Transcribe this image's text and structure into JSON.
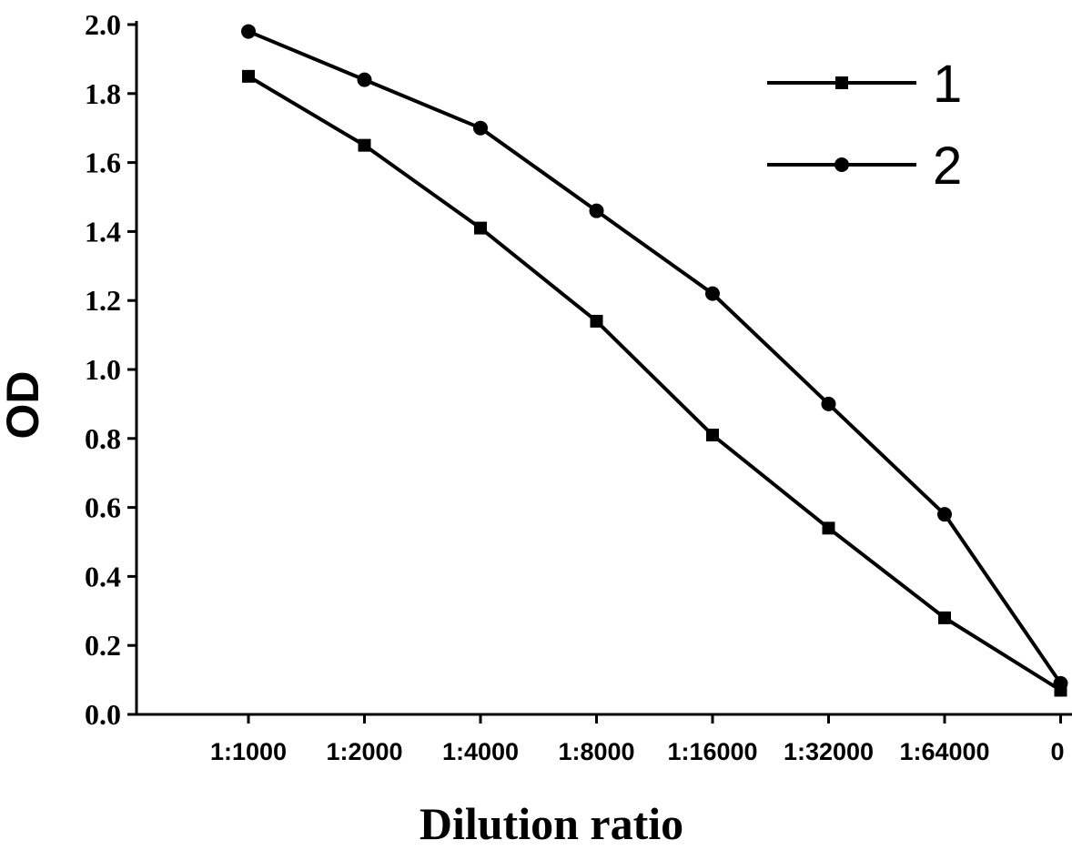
{
  "chart_data": {
    "type": "line",
    "title": "",
    "xlabel": "Dilution ratio",
    "ylabel": "OD",
    "categories": [
      "1:1000",
      "1:2000",
      "1:4000",
      "1:8000",
      "1:16000",
      "1:32000",
      "1:64000",
      "0"
    ],
    "ylim": [
      0,
      2.0
    ],
    "yticks": [
      "0.0",
      "0.2",
      "0.4",
      "0.6",
      "0.8",
      "1.0",
      "1.2",
      "1.4",
      "1.6",
      "1.8",
      "2.0"
    ],
    "grid": false,
    "legend_position": "top-right",
    "series": [
      {
        "name": "1",
        "marker": "square",
        "values": [
          1.85,
          1.65,
          1.41,
          1.14,
          0.81,
          0.54,
          0.28,
          0.07
        ]
      },
      {
        "name": "2",
        "marker": "circle",
        "values": [
          1.98,
          1.84,
          1.7,
          1.46,
          1.22,
          0.9,
          0.58,
          0.09
        ]
      }
    ],
    "colors": {
      "line": "#000000",
      "background": "#ffffff"
    }
  }
}
